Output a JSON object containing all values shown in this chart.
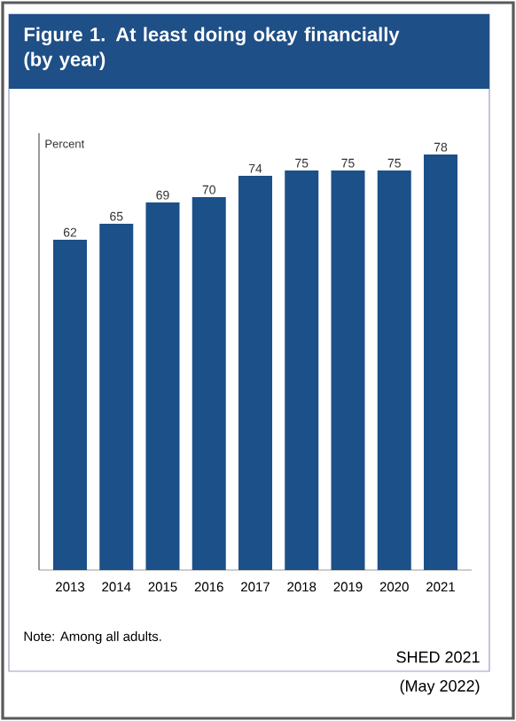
{
  "chart_data": {
    "type": "bar",
    "title": "Figure 1. At least doing okay financially (by year)",
    "ylabel": "Percent",
    "categories": [
      "2013",
      "2014",
      "2015",
      "2016",
      "2017",
      "2018",
      "2019",
      "2020",
      "2021"
    ],
    "values": [
      62,
      65,
      69,
      70,
      74,
      75,
      75,
      75,
      78
    ],
    "color": "#1b5088",
    "ylim": [
      0,
      82
    ],
    "data_labels": true,
    "tick_labels": "x",
    "annotations": [
      "Note: Among all adults.",
      "SHED 2021",
      "(May 2022)"
    ]
  }
}
